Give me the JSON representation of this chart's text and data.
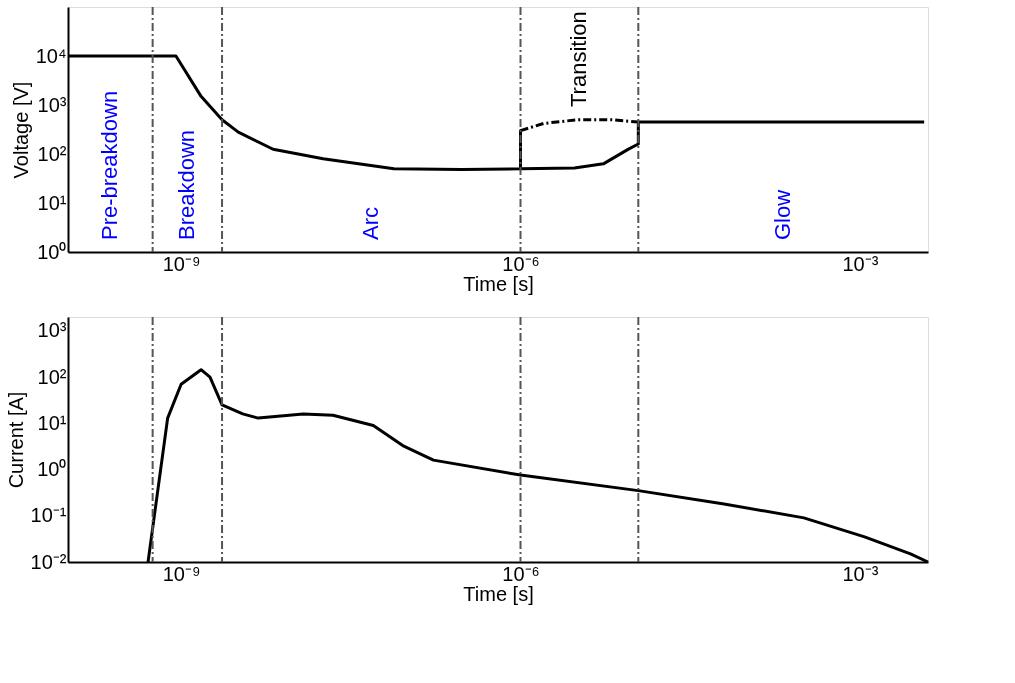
{
  "chart_data": [
    {
      "type": "line",
      "xlabel": "Time [s]",
      "ylabel": "Voltage [V]",
      "log": "xy",
      "grid": false,
      "xlim": [
        1e-10,
        0.004
      ],
      "ylim": [
        1,
        100000
      ],
      "xticks": [
        {
          "value": 1e-09,
          "label": "10⁻⁹"
        },
        {
          "value": 1e-06,
          "label": "10⁻⁶"
        },
        {
          "value": 0.001,
          "label": "10⁻³"
        }
      ],
      "yticks": [
        {
          "value": 1,
          "label": "10⁰"
        },
        {
          "value": 10,
          "label": "10¹"
        },
        {
          "value": 100,
          "label": "10²"
        },
        {
          "value": 1000,
          "label": "10³"
        },
        {
          "value": 10000,
          "label": "10⁴"
        }
      ],
      "series": [
        {
          "color": "#000000",
          "line_style": "solid",
          "x": [
            1e-10,
            9e-10,
            1.5e-09,
            2.3e-09,
            3.2e-09,
            6.5e-09,
            1.8e-08,
            7.6e-08,
            3e-07,
            1e-06,
            1e-06,
            1e-06,
            3e-06,
            5.4e-06,
            9e-06,
            1.1e-05,
            1.1e-05,
            0.0037
          ],
          "values": [
            10000,
            10000,
            1500,
            500,
            280,
            125,
            80,
            50,
            48,
            50,
            300,
            50,
            52,
            63,
            126,
            160,
            450,
            450
          ]
        },
        {
          "color": "#000000",
          "line_style": "dashed",
          "x": [
            1e-06,
            1.6e-06,
            3.2e-06,
            6.3e-06,
            1.1e-05
          ],
          "values": [
            300,
            420,
            500,
            500,
            450
          ]
        }
      ],
      "ref_lines": [
        {
          "axis": "x",
          "value": 5.6e-10,
          "line_style": "dashed",
          "color": "#555555"
        },
        {
          "axis": "x",
          "value": 2.3e-09,
          "line_style": "dashed",
          "color": "#555555"
        },
        {
          "axis": "x",
          "value": 1e-06,
          "line_style": "dashed",
          "color": "#555555"
        },
        {
          "axis": "x",
          "value": 1.1e-05,
          "line_style": "dashed",
          "color": "#555555"
        }
      ],
      "annotations": [
        "Pre-breakdown",
        "Breakdown",
        "Arc",
        "Transition",
        "Glow"
      ]
    },
    {
      "type": "line",
      "xlabel": "Time [s]",
      "ylabel": "Current [A]",
      "log": "xy",
      "grid": false,
      "xlim": [
        1e-10,
        0.004
      ],
      "ylim": [
        0.01,
        2000
      ],
      "xticks": [
        {
          "value": 1e-09,
          "label": "10⁻⁹"
        },
        {
          "value": 1e-06,
          "label": "10⁻⁶"
        },
        {
          "value": 0.001,
          "label": "10⁻³"
        }
      ],
      "yticks": [
        {
          "value": 0.01,
          "label": "10⁻²"
        },
        {
          "value": 0.1,
          "label": "10⁻¹"
        },
        {
          "value": 1,
          "label": "10⁰"
        },
        {
          "value": 10,
          "label": "10¹"
        },
        {
          "value": 100,
          "label": "10²"
        },
        {
          "value": 1000,
          "label": "10³"
        }
      ],
      "series": [
        {
          "color": "#000000",
          "line_style": "solid",
          "x": [
            5.1e-10,
            7.6e-10,
            1e-09,
            1.5e-09,
            1.8e-09,
            2.3e-09,
            3.5e-09,
            4.8e-09,
            1.2e-08,
            2.2e-08,
            5e-08,
            9.3e-08,
            1.7e-07,
            1e-06,
            1.1e-05,
            6.3e-05,
            0.00032,
            0.0011,
            0.0028,
            0.004
          ],
          "values": [
            0.01,
            13,
            70,
            145,
            100,
            25,
            16,
            13,
            16,
            15,
            9,
            3.2,
            1.6,
            0.76,
            0.35,
            0.18,
            0.09,
            0.035,
            0.015,
            0.01
          ]
        }
      ],
      "ref_lines": [
        {
          "axis": "x",
          "value": 5.6e-10,
          "line_style": "dashed",
          "color": "#555555"
        },
        {
          "axis": "x",
          "value": 2.3e-09,
          "line_style": "dashed",
          "color": "#555555"
        },
        {
          "axis": "x",
          "value": 1e-06,
          "line_style": "dashed",
          "color": "#555555"
        },
        {
          "axis": "x",
          "value": 1.1e-05,
          "line_style": "dashed",
          "color": "#555555"
        }
      ]
    }
  ]
}
